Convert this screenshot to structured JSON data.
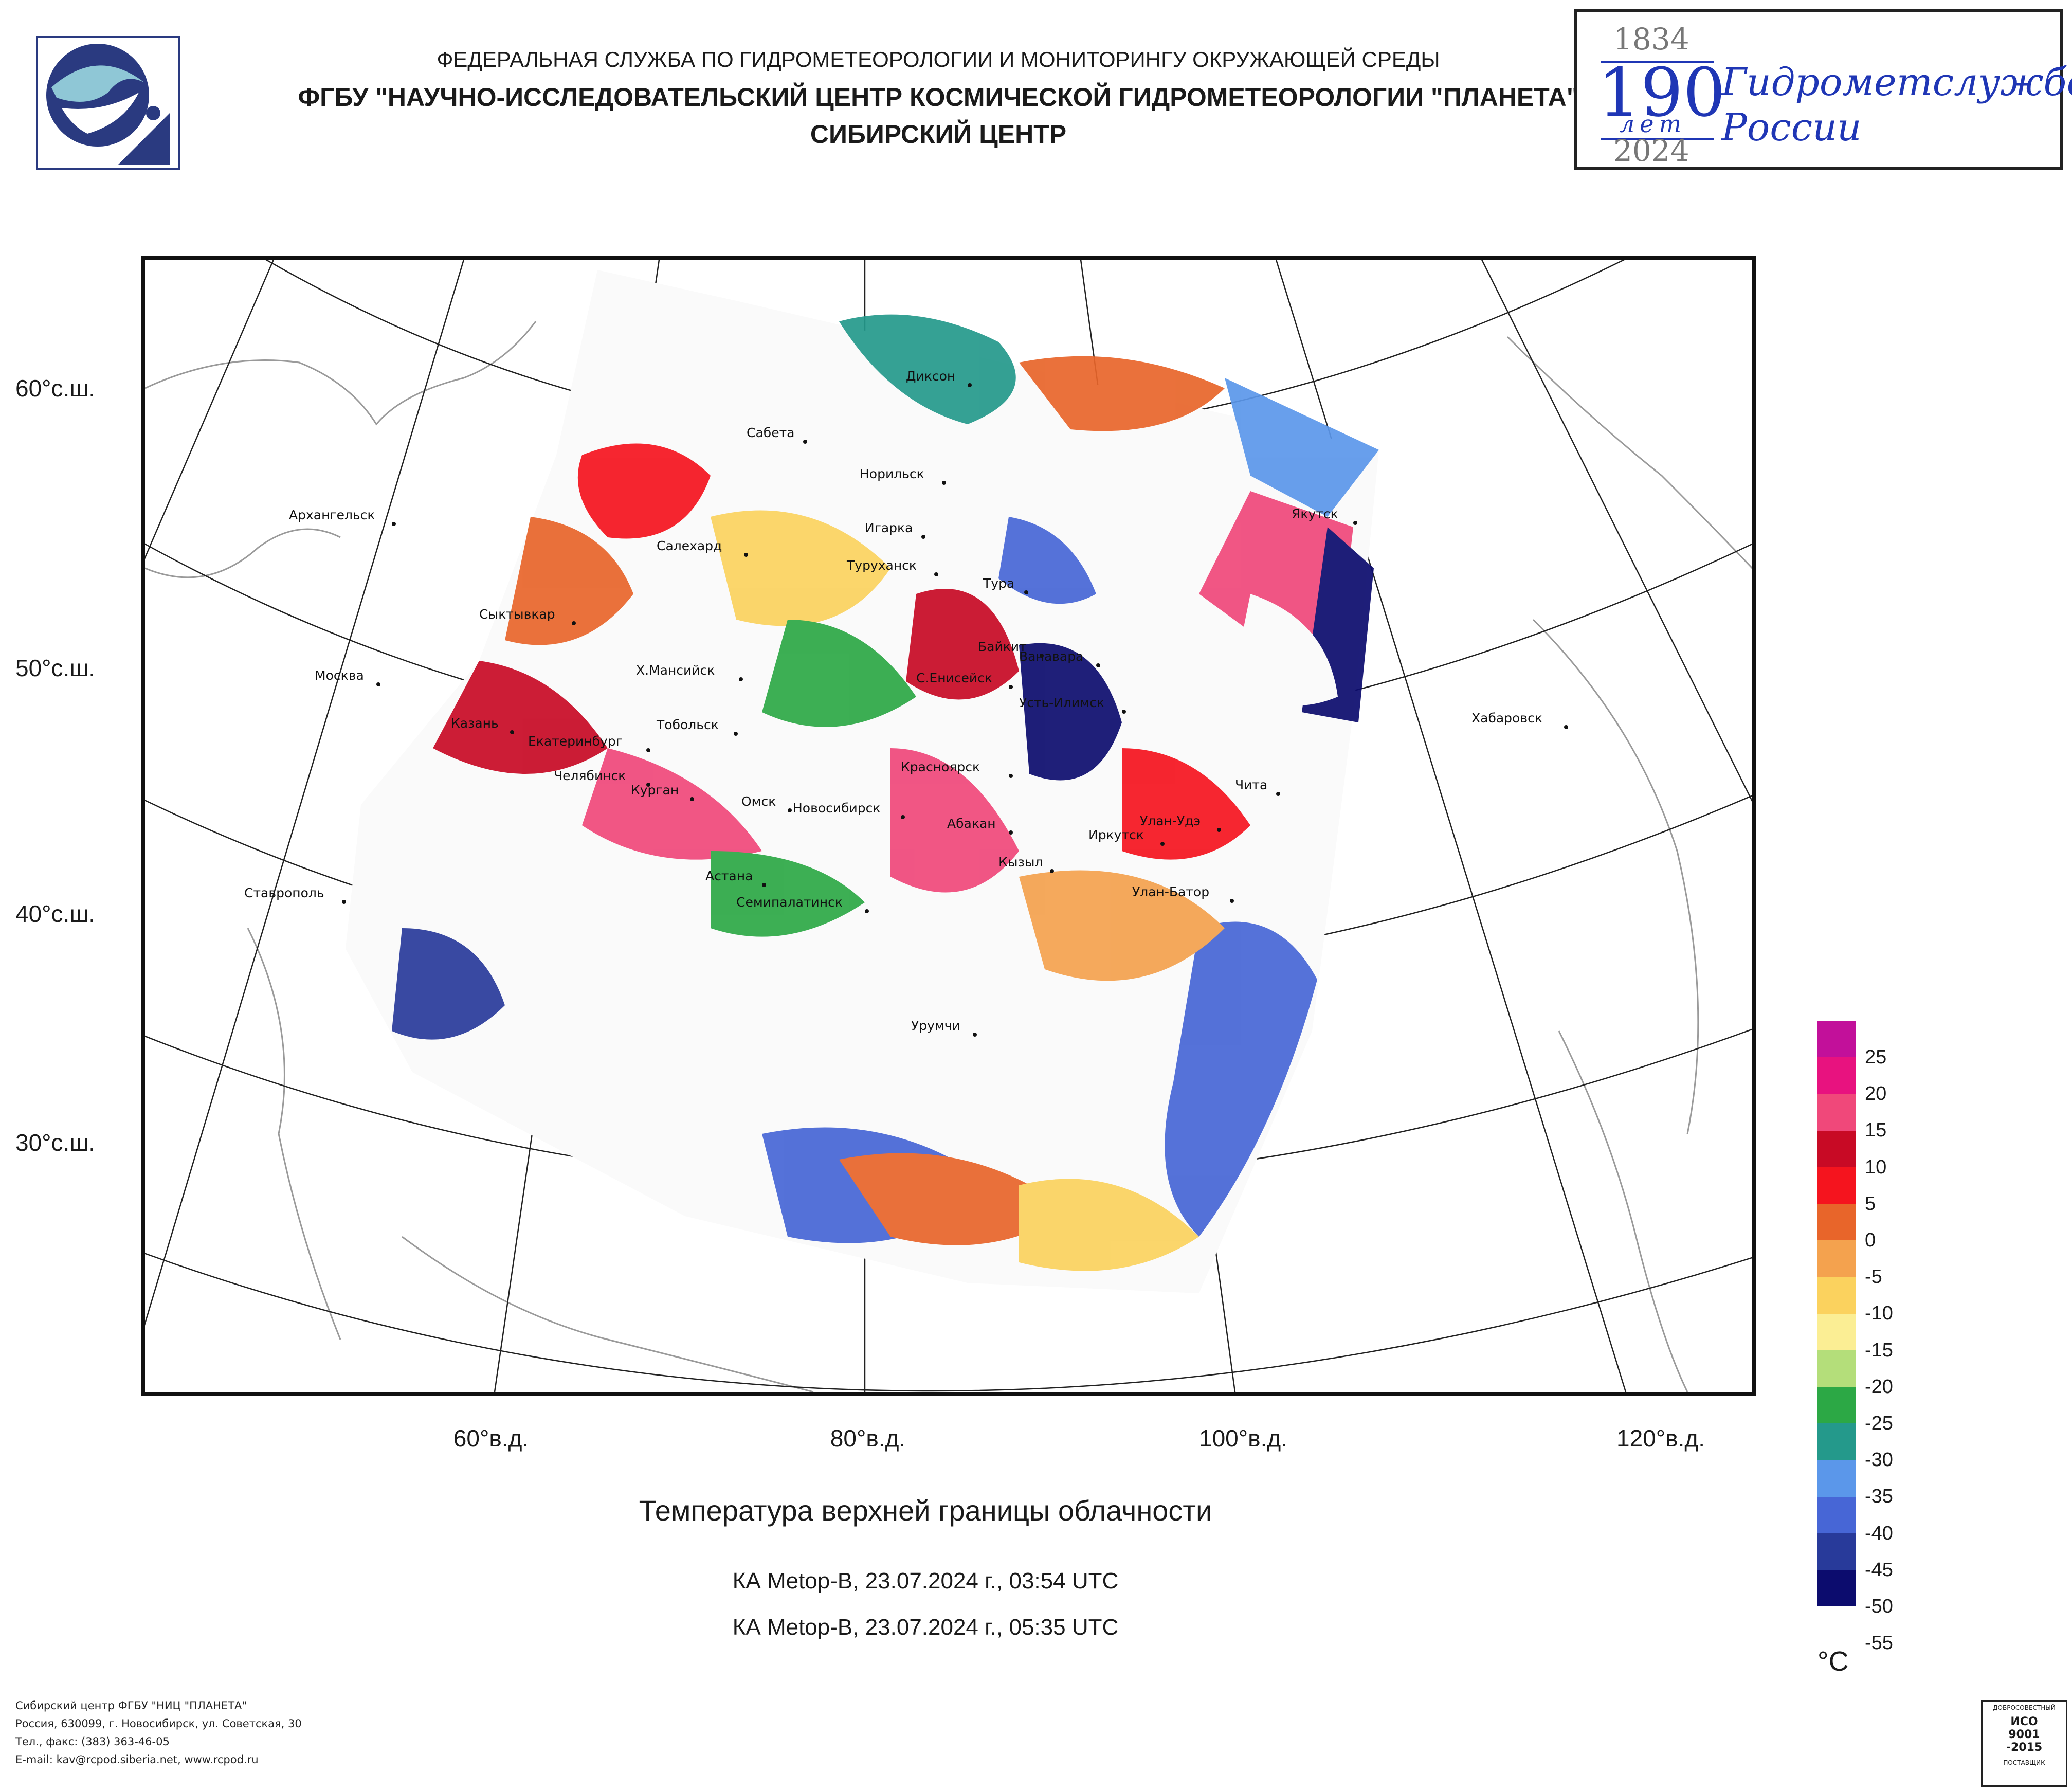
{
  "header": {
    "line1": "ФЕДЕРАЛЬНАЯ СЛУЖБА ПО ГИДРОМЕТЕОРОЛОГИИ И МОНИТОРИНГУ ОКРУЖАЮЩЕЙ СРЕДЫ",
    "line2": "ФГБУ \"НАУЧНО-ИССЛЕДОВАТЕЛЬСКИЙ ЦЕНТР КОСМИЧЕСКОЙ ГИДРОМЕТЕОРОЛОГИИ \"ПЛАНЕТА\"",
    "line3": "СИБИРСКИЙ ЦЕНТР"
  },
  "anniversary": {
    "year_start": "1834",
    "years": "190",
    "years_word": "лет",
    "year_end": "2024",
    "text_line1": "Гидрометслужбе",
    "text_line2": "России"
  },
  "axes": {
    "lat_labels": [
      "60°с.ш.",
      "50°с.ш.",
      "40°с.ш.",
      "30°с.ш."
    ],
    "lon_labels": [
      "60°в.д.",
      "80°в.д.",
      "100°в.д.",
      "120°в.д."
    ]
  },
  "cities": [
    "Диксон",
    "Сабета",
    "Норильск",
    "Архангельск",
    "Якутск",
    "Салехард",
    "Игарка",
    "Туруханск",
    "Тура",
    "Сыктывкар",
    "Байкит",
    "Ванавара",
    "Москва",
    "Х.Мансийск",
    "С.Енисейск",
    "Усть-Илимск",
    "Хабаровск",
    "Казань",
    "Тобольск",
    "Екатеринбург",
    "Красноярск",
    "Чита",
    "Челябинск",
    "Курган",
    "Омск",
    "Новосибирск",
    "Абакан",
    "Улан-Удэ",
    "Иркутск",
    "Астана",
    "Кызыл",
    "Ставрополь",
    "Улан-Батор",
    "Семипалатинск",
    "Урумчи"
  ],
  "title": "Температура верхней границы облачности",
  "subtitles": [
    "КА Metop-B, 23.07.2024 г., 03:54 UTC",
    "КА Metop-B, 23.07.2024 г., 05:35 UTC"
  ],
  "legend": {
    "unit": "°C",
    "labels": [
      "25",
      "20",
      "15",
      "10",
      "5",
      "0",
      "-5",
      "-10",
      "-15",
      "-20",
      "-25",
      "-30",
      "-35",
      "-40",
      "-45",
      "-50",
      "-55"
    ],
    "colors": [
      "#c2109a",
      "#e8127f",
      "#f0487a",
      "#c80a25",
      "#f5141e",
      "#e8652a",
      "#f4a24e",
      "#fbd25e",
      "#fbee94",
      "#b4de7a",
      "#2ca845",
      "#24998b",
      "#5b97ea",
      "#4766d6",
      "#283a9a",
      "#0c0c6e"
    ]
  },
  "footer": [
    "Сибирский центр ФГБУ \"НИЦ \"ПЛАНЕТА\"",
    "Россия, 630099, г. Новосибирск, ул. Советская, 30",
    "Тел., факс: (383) 363-46-05",
    "E-mail: kav@rcpod.siberia.net, www.rcpod.ru"
  ],
  "iso_badge": {
    "top": "ДОБРОСОВЕСТНЫЙ",
    "line1": "ИСО",
    "line2": "9001",
    "line3": "-2015",
    "bottom": "ПОСТАВЩИК"
  }
}
